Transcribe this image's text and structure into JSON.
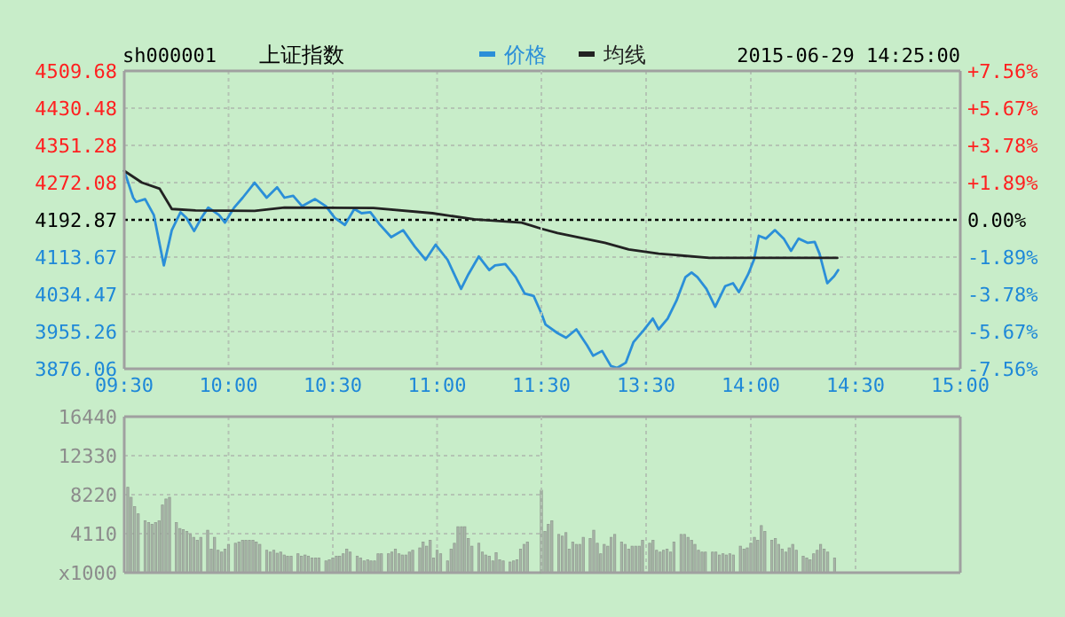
{
  "chart_data": [
    {
      "type": "line",
      "title": "上证指数",
      "subtitle": "sh000001",
      "series": [
        {
          "name": "价格",
          "color": "#2b8fd8",
          "x": [
            9.5,
            9.543,
            9.557,
            9.6,
            9.642,
            9.69,
            9.728,
            9.77,
            9.798,
            9.835,
            9.87,
            9.903,
            9.955,
            9.983,
            10.027,
            10.068,
            10.125,
            10.183,
            10.233,
            10.268,
            10.31,
            10.353,
            10.415,
            10.467,
            10.51,
            10.558,
            10.603,
            10.638,
            10.68,
            10.723,
            10.78,
            10.837,
            10.893,
            10.945,
            10.993,
            11.05,
            11.115,
            11.15,
            11.2,
            11.25,
            11.278,
            11.327,
            11.377,
            11.42,
            11.463,
            11.5
          ],
          "values": [
            4297,
            4240,
            4231,
            4237,
            4203,
            4096,
            4171,
            4209,
            4197,
            4169,
            4197,
            4219,
            4203,
            4187,
            4219,
            4240,
            4272,
            4240,
            4262,
            4240,
            4244,
            4222,
            4237,
            4222,
            4197,
            4182,
            4216,
            4207,
            4209,
            4184,
            4156,
            4171,
            4136,
            4108,
            4140,
            4108,
            4046,
            4077,
            4115,
            4086,
            4096,
            4099,
            4071,
            4036,
            4031,
            3994
          ]
        },
        {
          "name": "均线",
          "color": "#222222",
          "x": [
            9.5,
            9.585,
            9.67,
            9.728,
            9.842,
            10.125,
            10.268,
            10.695,
            10.978,
            11.178,
            11.405,
            11.5
          ],
          "values": [
            4297,
            4272,
            4259,
            4216,
            4213,
            4212,
            4219,
            4218,
            4207,
            4194,
            4187,
            4174
          ]
        }
      ],
      "xlim": [
        9.5,
        11.5
      ],
      "xticks": [
        {
          "value": 9.5,
          "label": "09:30"
        },
        {
          "value": 10,
          "label": "10:00"
        },
        {
          "value": 10.5,
          "label": "10:30"
        },
        {
          "value": 11,
          "label": "11:00"
        },
        {
          "value": 11.5,
          "label": "11:30"
        }
      ],
      "ylim": [
        3876.06,
        4509.68
      ],
      "yticks": [
        4509.68,
        4430.48,
        4351.28,
        4272.08,
        4192.87,
        4113.67,
        4034.47,
        3955.26,
        3876.06
      ],
      "ref_lines": [
        {
          "axis": "y",
          "value": 4192.87,
          "color": "#000000",
          "line_style": "dotted"
        }
      ],
      "grid": true,
      "legend": "top",
      "marker": "none",
      "line_style": "solid"
    },
    {
      "type": "line",
      "annotations": [
        "2015-06-29 14:25:00"
      ],
      "series": [
        {
          "color": "#2b8fd8",
          "x": [
            13,
            13.02,
            13.077,
            13.118,
            13.167,
            13.218,
            13.247,
            13.29,
            13.332,
            13.362,
            13.403,
            13.44,
            13.488,
            13.532,
            13.56,
            13.603,
            13.645,
            13.688,
            13.717,
            13.745,
            13.788,
            13.83,
            13.878,
            13.915,
            13.943,
            13.987,
            14.015,
            14.038,
            14.072,
            14.115,
            14.157,
            14.192,
            14.228,
            14.272,
            14.305,
            14.328,
            14.365,
            14.398,
            14.417
          ],
          "values": [
            3994,
            3970,
            3952,
            3942,
            3960,
            3926,
            3904,
            3914,
            3882,
            3878,
            3889,
            3933,
            3958,
            3983,
            3960,
            3983,
            4021,
            4071,
            4081,
            4071,
            4046,
            4008,
            4052,
            4058,
            4039,
            4077,
            4108,
            4159,
            4153,
            4171,
            4153,
            4127,
            4153,
            4144,
            4146,
            4121,
            4058,
            4073,
            4086
          ]
        },
        {
          "color": "#222222",
          "x": [
            13,
            13.077,
            13.303,
            13.417,
            13.56,
            13.802,
            14.413
          ],
          "values": [
            4174,
            4165,
            4144,
            4130,
            4121,
            4112,
            4112
          ]
        }
      ],
      "xlim": [
        13,
        15
      ],
      "xticks": [
        {
          "value": 13,
          "label": null
        },
        {
          "value": 13.5,
          "label": "13:30"
        },
        {
          "value": 14,
          "label": "14:00"
        },
        {
          "value": 14.5,
          "label": "14:30"
        },
        {
          "value": 15,
          "label": "15:00"
        }
      ],
      "ylim": [
        3876.06,
        4509.68
      ],
      "y2lim": [
        -7.56,
        7.56
      ],
      "y2ticks": [
        {
          "value": 7.56,
          "label": "+7.56%"
        },
        {
          "value": 5.67,
          "label": "+5.67%"
        },
        {
          "value": 3.78,
          "label": "+3.78%"
        },
        {
          "value": 1.89,
          "label": "+1.89%"
        },
        {
          "value": 0,
          "label": "0.00%"
        },
        {
          "value": -1.89,
          "label": "-1.89%"
        },
        {
          "value": -3.78,
          "label": "-3.78%"
        },
        {
          "value": -5.67,
          "label": "-5.67%"
        },
        {
          "value": -7.56,
          "label": "-7.56%"
        }
      ],
      "ref_lines": [
        {
          "axis": "y",
          "value": 4192.87,
          "color": "#000000",
          "line_style": "dotted"
        }
      ],
      "grid": true,
      "marker": "none",
      "line_style": "solid"
    },
    {
      "type": "bar",
      "color": "#a9b5a9",
      "x": [
        9.517,
        9.533,
        9.55,
        9.567,
        9.6,
        9.617,
        9.633,
        9.65,
        9.667,
        9.683,
        9.7,
        9.717,
        9.75,
        9.767,
        9.783,
        9.8,
        9.817,
        9.833,
        9.85,
        9.867,
        9.9,
        9.917,
        9.933,
        9.95,
        9.967,
        9.983,
        10,
        10.033,
        10.05,
        10.067,
        10.083,
        10.1,
        10.117,
        10.133,
        10.15,
        10.183,
        10.2,
        10.217,
        10.233,
        10.25,
        10.267,
        10.283,
        10.3,
        10.333,
        10.35,
        10.367,
        10.383,
        10.4,
        10.417,
        10.433,
        10.467,
        10.483,
        10.5,
        10.517,
        10.533,
        10.55,
        10.567,
        10.583,
        10.617,
        10.633,
        10.65,
        10.667,
        10.683,
        10.7,
        10.717,
        10.733,
        10.767,
        10.783,
        10.8,
        10.817,
        10.833,
        10.85,
        10.867,
        10.883,
        10.917,
        10.933,
        10.95,
        10.967,
        10.983,
        11,
        11.017,
        11.05,
        11.067,
        11.083,
        11.1,
        11.117,
        11.133,
        11.15,
        11.167,
        11.2,
        11.217,
        11.233,
        11.25,
        11.267,
        11.283,
        11.3,
        11.317,
        11.35,
        11.367,
        11.383,
        11.4,
        11.417,
        11.433
      ],
      "values": [
        9000,
        7940,
        6950,
        6200,
        5460,
        5270,
        5090,
        5270,
        5460,
        7130,
        7760,
        7940,
        5270,
        4650,
        4530,
        4340,
        4030,
        3720,
        3410,
        3720,
        4470,
        2480,
        3720,
        2360,
        2170,
        2480,
        2980,
        3100,
        3230,
        3410,
        3410,
        3410,
        3410,
        3230,
        2980,
        2360,
        2170,
        2360,
        2050,
        2170,
        1860,
        1740,
        1740,
        1990,
        1740,
        1860,
        1740,
        1550,
        1550,
        1550,
        1240,
        1360,
        1550,
        1740,
        1740,
        1990,
        2480,
        2170,
        1740,
        1550,
        1240,
        1360,
        1240,
        1240,
        1990,
        1990,
        1990,
        2170,
        2480,
        1990,
        1860,
        1860,
        2170,
        2360,
        2610,
        3230,
        2790,
        3410,
        1550,
        2360,
        1990,
        1240,
        2480,
        3100,
        4840,
        4840,
        4840,
        3600,
        2790,
        3100,
        2170,
        1860,
        1740,
        1240,
        2110,
        1360,
        1240,
        1120,
        1240,
        1360,
        2480,
        2980,
        3230
      ],
      "xlim": [
        9.5,
        11.5
      ],
      "xticks": [
        {
          "value": 9.5,
          "label": null
        },
        {
          "value": 10,
          "label": null
        },
        {
          "value": 10.5,
          "label": null
        },
        {
          "value": 11,
          "label": null
        },
        {
          "value": 11.5,
          "label": null
        }
      ],
      "ylim": [
        0,
        16440
      ],
      "yticks": [
        {
          "value": 0,
          "label": "x1000"
        },
        4110,
        8220,
        12330,
        16440
      ],
      "tick_labels": "y",
      "grid": true
    },
    {
      "type": "bar",
      "color": "#a9b5a9",
      "x": [
        13,
        13.017,
        13.033,
        13.05,
        13.083,
        13.1,
        13.117,
        13.133,
        13.15,
        13.167,
        13.183,
        13.2,
        13.233,
        13.25,
        13.267,
        13.283,
        13.3,
        13.317,
        13.333,
        13.35,
        13.383,
        13.4,
        13.417,
        13.433,
        13.45,
        13.467,
        13.483,
        13.517,
        13.533,
        13.55,
        13.567,
        13.583,
        13.6,
        13.617,
        13.633,
        13.667,
        13.683,
        13.7,
        13.717,
        13.733,
        13.75,
        13.767,
        13.783,
        13.817,
        13.833,
        13.85,
        13.867,
        13.883,
        13.9,
        13.917,
        13.95,
        13.967,
        13.983,
        14,
        14.017,
        14.033,
        14.05,
        14.067,
        14.1,
        14.117,
        14.133,
        14.15,
        14.167,
        14.183,
        14.2,
        14.217,
        14.25,
        14.267,
        14.283,
        14.3,
        14.317,
        14.333,
        14.35,
        14.367,
        14.4
      ],
      "values": [
        8690,
        4340,
        5090,
        5460,
        4030,
        3850,
        4220,
        2480,
        3230,
        2980,
        2980,
        3720,
        3600,
        4470,
        3100,
        1990,
        2980,
        2790,
        3720,
        4030,
        3230,
        2980,
        2480,
        2790,
        2790,
        2790,
        3410,
        3100,
        3410,
        2360,
        2170,
        2360,
        2480,
        2170,
        3230,
        4030,
        4030,
        3720,
        3410,
        2980,
        2360,
        2170,
        2170,
        2170,
        2170,
        1860,
        1990,
        1860,
        1990,
        1860,
        2790,
        2480,
        2610,
        3100,
        3720,
        3410,
        4960,
        4340,
        3410,
        3600,
        2980,
        2480,
        2170,
        2610,
        2980,
        2360,
        1740,
        1550,
        1360,
        1990,
        2360,
        2980,
        2480,
        2170,
        1550
      ],
      "xlim": [
        13,
        15
      ],
      "xticks": [
        {
          "value": 13,
          "label": null
        },
        {
          "value": 13.5,
          "label": null
        },
        {
          "value": 14,
          "label": null
        },
        {
          "value": 14.5,
          "label": null
        },
        {
          "value": 15,
          "label": null
        }
      ],
      "ylim": [
        0,
        16440
      ],
      "tick_labels": false,
      "grid": "x"
    }
  ]
}
